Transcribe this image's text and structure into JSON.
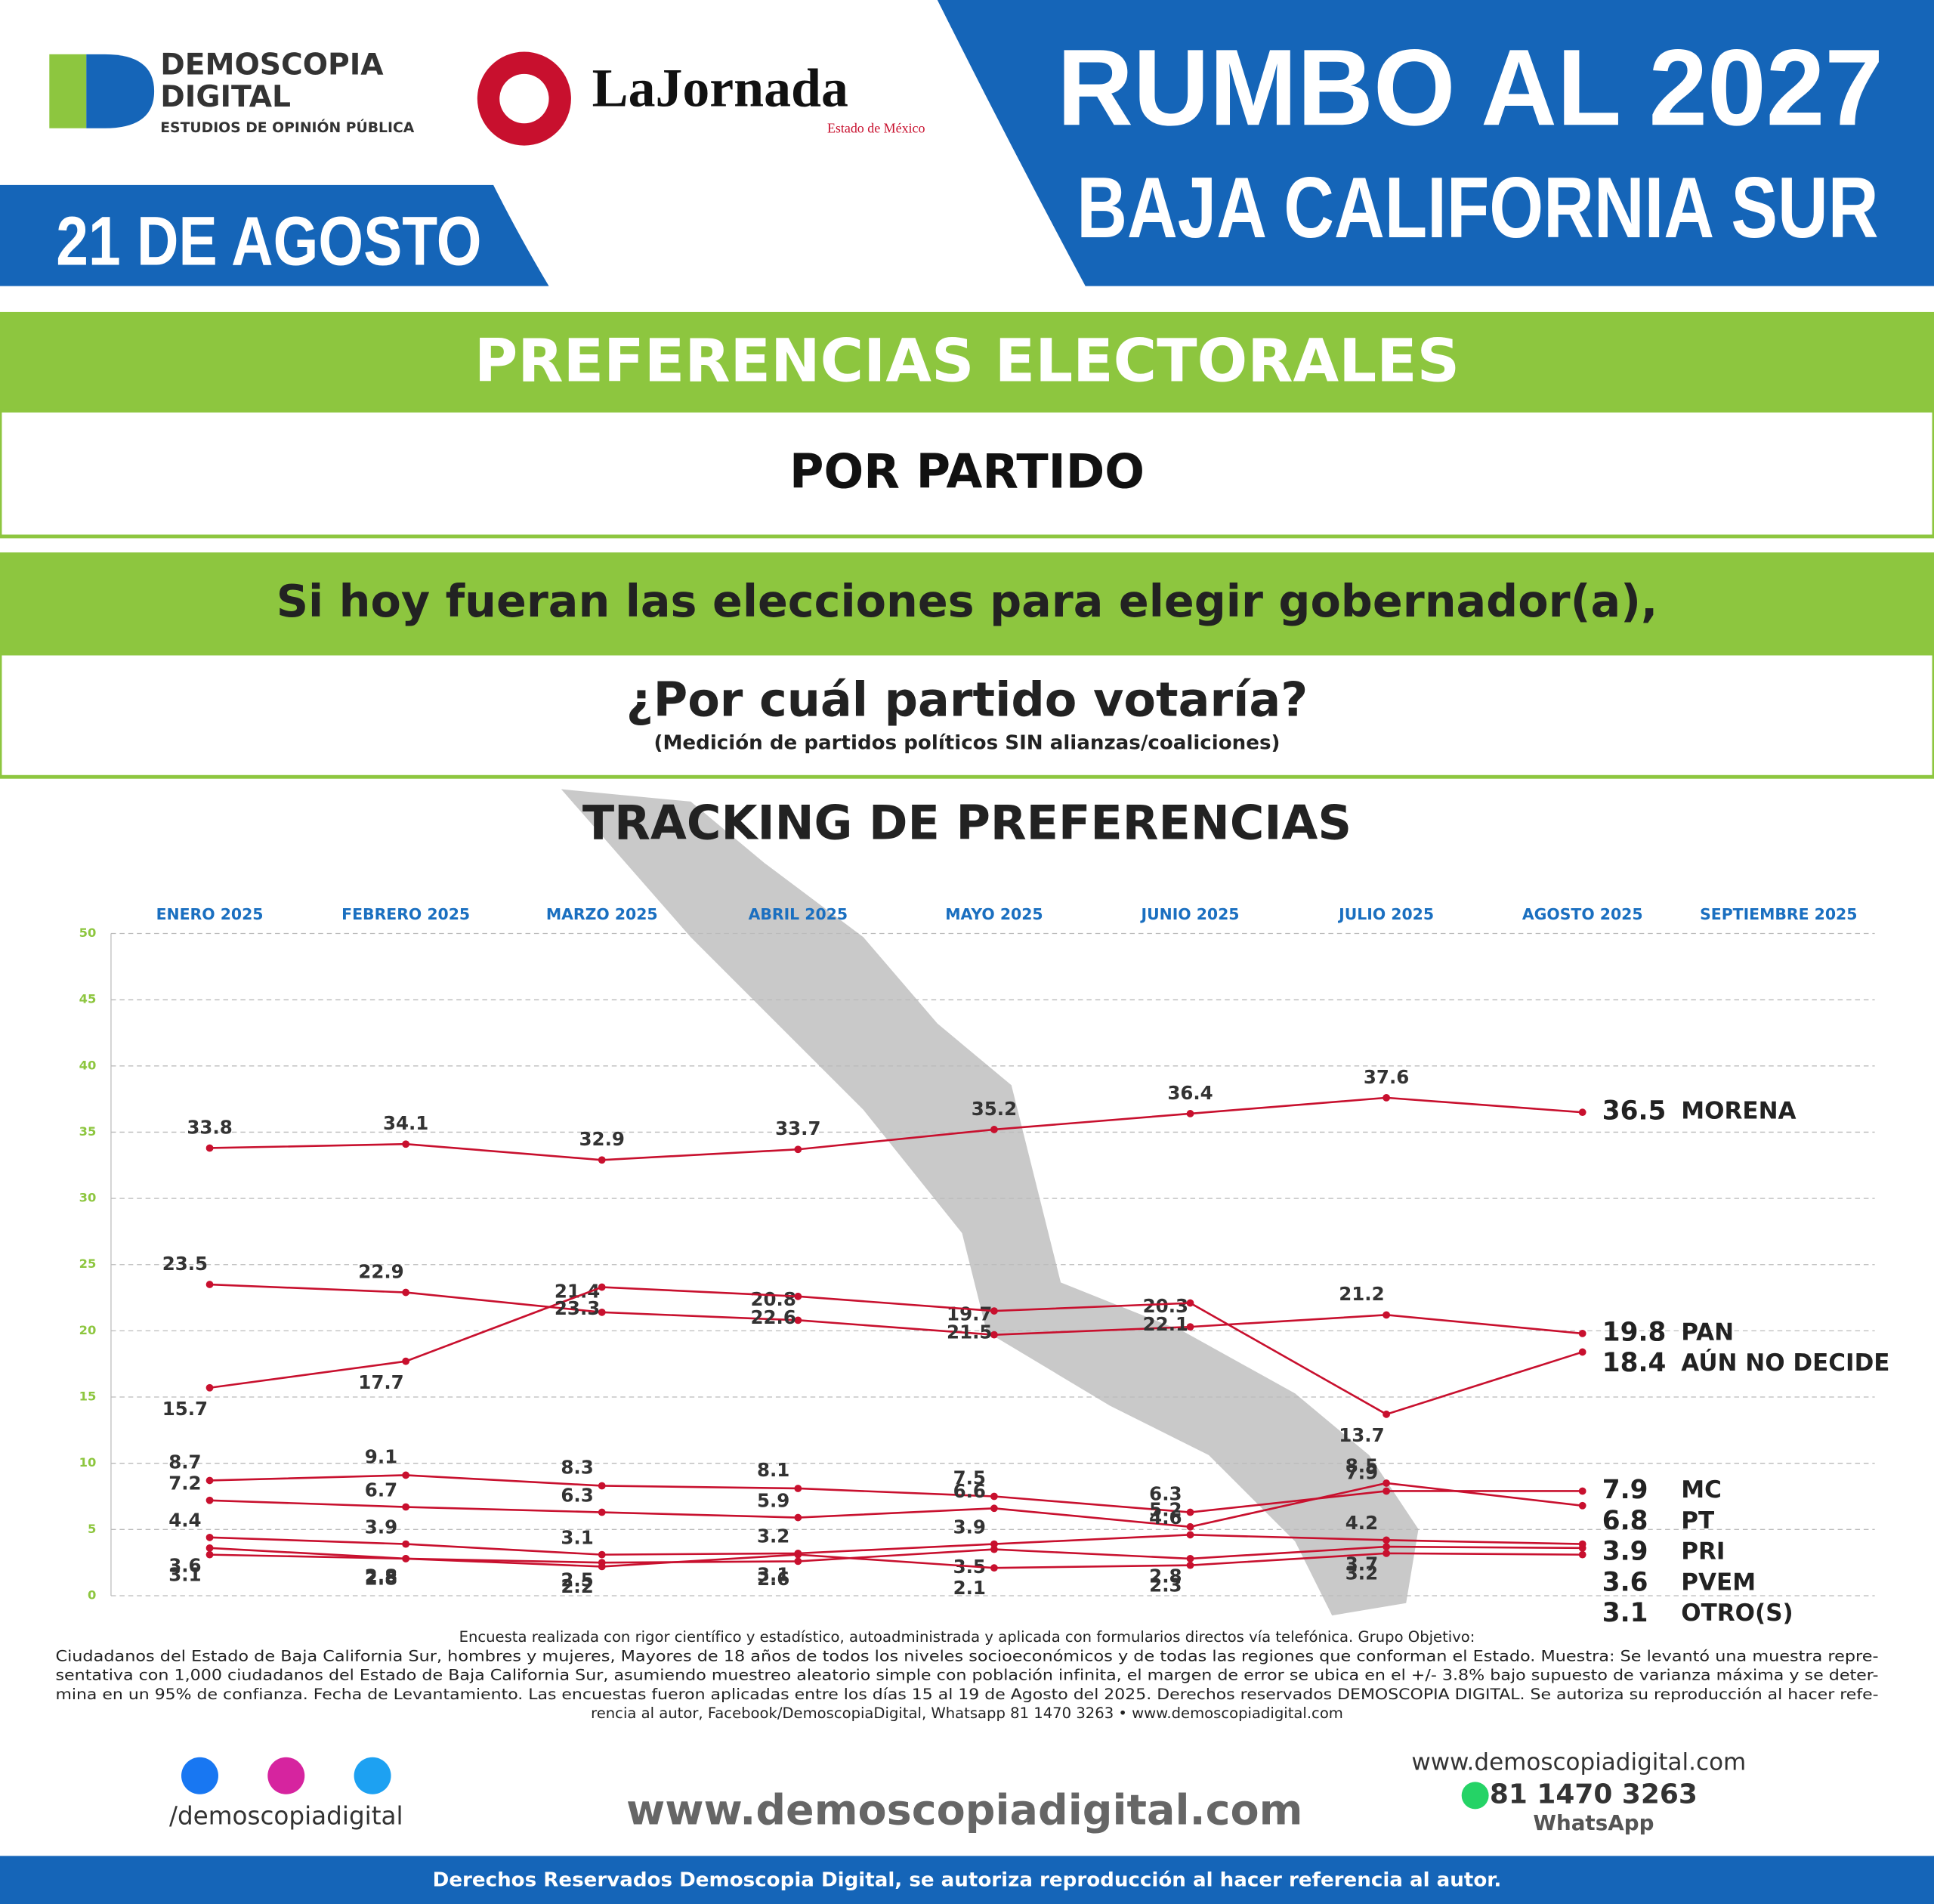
{
  "header": {
    "logo_name_1": "DEMOSCOPIA",
    "logo_name_2": "DIGITAL",
    "logo_tagline": "ESTUDIOS DE OPINIÓN PÚBLICA",
    "partner": "LaJornada",
    "partner_sub": "Estado de México",
    "date": "21 DE AGOSTO",
    "title_1": "RUMBO AL 2027",
    "title_2": "BAJA CALIFORNIA SUR"
  },
  "section": {
    "title": "PREFERENCIAS ELECTORALES",
    "subtitle": "POR PARTIDO",
    "question_1": "Si hoy fueran las elecciones para elegir gobernador(a),",
    "question_2": "¿Por cuál partido votaría?",
    "note": "(Medición de partidos políticos SIN alianzas/coaliciones)"
  },
  "chart_data": {
    "type": "line",
    "title": "TRACKING DE PREFERENCIAS",
    "categories": [
      "ENERO 2025",
      "FEBRERO 2025",
      "MARZO 2025",
      "ABRIL 2025",
      "MAYO 2025",
      "JUNIO 2025",
      "JULIO 2025",
      "AGOSTO 2025",
      "SEPTIEMBRE 2025"
    ],
    "series": [
      {
        "name": "MORENA",
        "color": "#c8102e",
        "values": [
          33.8,
          34.1,
          32.9,
          33.7,
          35.2,
          36.4,
          37.6,
          36.5,
          null
        ]
      },
      {
        "name": "PAN",
        "color": "#c8102e",
        "values": [
          23.5,
          22.9,
          21.4,
          20.8,
          19.7,
          20.3,
          21.2,
          19.8,
          null
        ]
      },
      {
        "name": "AÚN NO DECIDE",
        "color": "#c8102e",
        "values": [
          15.7,
          17.7,
          23.3,
          22.6,
          21.5,
          22.1,
          13.7,
          18.4,
          null
        ]
      },
      {
        "name": "MC",
        "color": "#c8102e",
        "values": [
          8.7,
          9.1,
          8.3,
          8.1,
          7.5,
          6.3,
          7.9,
          7.9,
          null
        ]
      },
      {
        "name": "PT",
        "color": "#c8102e",
        "values": [
          7.2,
          6.7,
          6.3,
          5.9,
          6.6,
          5.2,
          8.5,
          6.8,
          null
        ]
      },
      {
        "name": "PRI",
        "color": "#c8102e",
        "values": [
          4.4,
          3.9,
          3.1,
          3.2,
          3.9,
          4.6,
          4.2,
          3.9,
          null
        ]
      },
      {
        "name": "PVEM",
        "color": "#c8102e",
        "values": [
          3.6,
          2.8,
          2.5,
          2.6,
          3.5,
          2.8,
          3.7,
          3.6,
          null
        ]
      },
      {
        "name": "OTRO(S)",
        "color": "#c8102e",
        "values": [
          3.1,
          2.8,
          2.2,
          3.1,
          2.1,
          2.3,
          3.2,
          3.1,
          null
        ]
      }
    ],
    "ylim": [
      0,
      50
    ],
    "yticks": [
      0,
      5,
      10,
      15,
      20,
      25,
      30,
      35,
      40,
      45,
      50
    ],
    "grid": true
  },
  "footer": {
    "methodology": [
      "Encuesta realizada con rigor científico y estadístico, autoadministrada y aplicada con formularios directos vía telefónica. Grupo Objetivo:",
      "Ciudadanos del Estado de Baja California Sur, hombres y mujeres, Mayores de 18 años de todos los niveles socioeconómicos y de todas las regiones que conforman el Estado. Muestra: Se levantó una muestra repre-",
      "sentativa con 1,000 ciudadanos del Estado de Baja California Sur, asumiendo muestreo aleatorio simple con población infinita, el margen de error se ubica en el +/- 3.8% bajo supuesto de varianza máxima y se deter-",
      "mina en un 95% de confianza. Fecha de Levantamiento. Las encuestas fueron aplicadas entre los días 15 al 19 de Agosto del 2025. Derechos reservados DEMOSCOPIA DIGITAL. Se autoriza su reproducción al hacer refe-",
      "rencia al autor, Facebook/DemoscopiaDigital, Whatsapp 81 1470 3263 • www.demoscopiadigital.com"
    ],
    "social": "/demoscopiadigital",
    "website": "www.demoscopiadigital.com",
    "contact_site": "www.demoscopiadigital.com",
    "phone": "81 1470 3263",
    "phone_label": "WhatsApp",
    "rights": "Derechos Reservados Demoscopia Digital, se autoriza reproducción al hacer referencia al autor."
  }
}
